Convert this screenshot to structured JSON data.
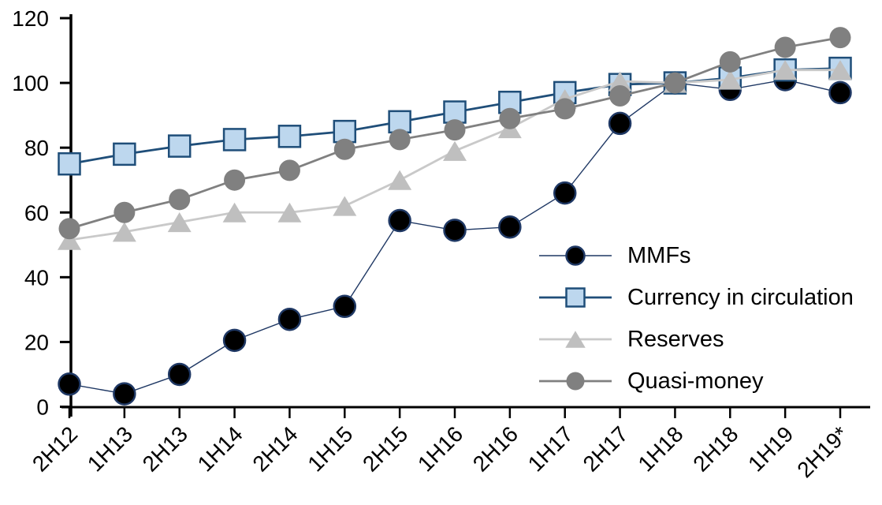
{
  "chart_data": {
    "type": "line",
    "title": "",
    "xlabel": "",
    "ylabel": "",
    "categories": [
      "2H12",
      "1H13",
      "2H13",
      "1H14",
      "2H14",
      "1H15",
      "2H15",
      "1H16",
      "2H16",
      "1H17",
      "2H17",
      "1H18",
      "2H18",
      "1H19",
      "2H19*"
    ],
    "series": [
      {
        "name": "MMFs",
        "marker": "circle",
        "marker_fill": "#000000",
        "marker_stroke": "#1f3864",
        "line_color": "#1f3864",
        "line_width": 1.4,
        "values": [
          7,
          4,
          10,
          20.5,
          27,
          31,
          57.5,
          54.5,
          55.5,
          66,
          87.5,
          100,
          98,
          101,
          97
        ]
      },
      {
        "name": "Currency in circulation",
        "marker": "square",
        "marker_fill": "#bdd7ee",
        "marker_stroke": "#1f4e79",
        "line_color": "#1f4e79",
        "line_width": 2.8,
        "values": [
          75,
          78,
          80.5,
          82.5,
          83.5,
          85,
          88,
          91,
          94,
          97,
          99.5,
          100,
          101.5,
          104,
          104.5
        ]
      },
      {
        "name": "Reserves",
        "marker": "triangle",
        "marker_fill": "#bfbfbf",
        "marker_stroke": "none",
        "line_color": "#c9c9c9",
        "line_width": 2.8,
        "values": [
          51.5,
          54,
          57,
          60,
          60,
          62,
          70,
          79,
          86,
          95,
          100.5,
          100,
          101,
          104,
          104
        ]
      },
      {
        "name": "Quasi-money",
        "marker": "circle",
        "marker_fill": "#808080",
        "marker_stroke": "none",
        "line_color": "#808080",
        "line_width": 2.8,
        "values": [
          55,
          60,
          64,
          70,
          73,
          79.5,
          82.5,
          85.5,
          89,
          92,
          96,
          100,
          106.5,
          111,
          114
        ]
      }
    ],
    "ylim": [
      0,
      120
    ],
    "ytick_step": 20,
    "ytick_labels": [
      "0",
      "20",
      "40",
      "60",
      "80",
      "100",
      "120"
    ],
    "grid": false,
    "legend_position": "inside-right",
    "axis_color": "#000000"
  }
}
